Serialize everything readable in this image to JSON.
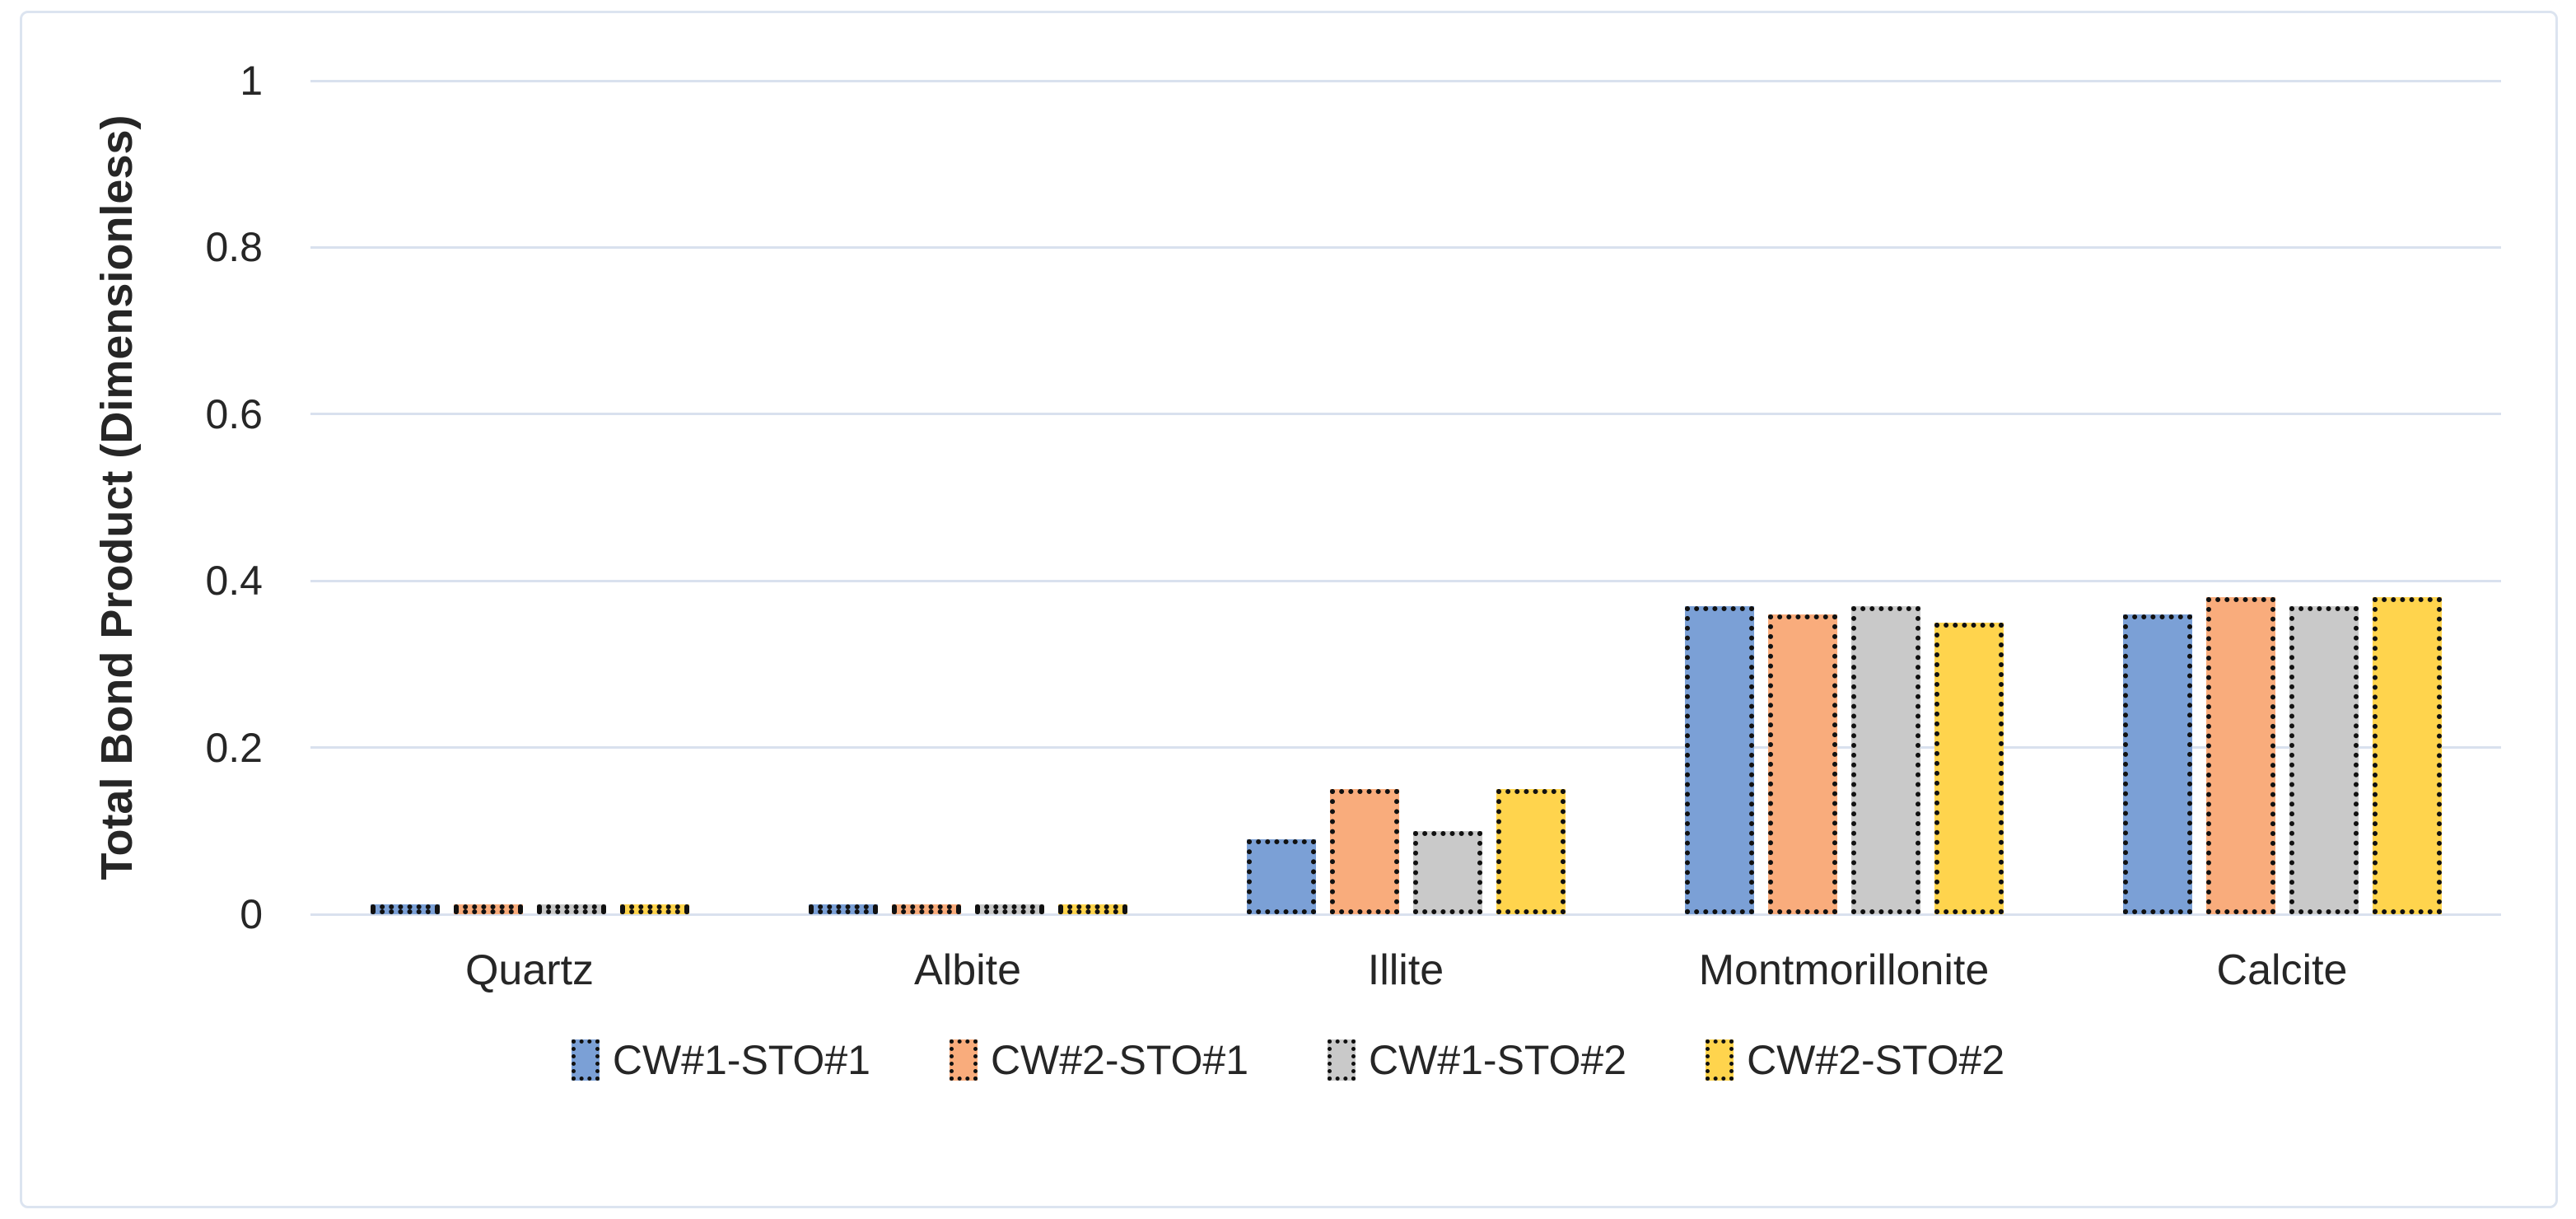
{
  "figure": {
    "background": "#ffffff",
    "border_color": "#dce4f0"
  },
  "chart_data": {
    "type": "bar",
    "title": "",
    "xlabel": "",
    "ylabel": "Total Bond Product (Dimensionless)",
    "categories": [
      "Quartz",
      "Albite",
      "Illite",
      "Montmorillonite",
      "Calcite"
    ],
    "series": [
      {
        "name": "CW#1-STO#1",
        "color": "#7BA0D6",
        "values": [
          0.01,
          0.01,
          0.09,
          0.37,
          0.36
        ]
      },
      {
        "name": "CW#2-STO#1",
        "color": "#F9AC7C",
        "values": [
          0.01,
          0.01,
          0.15,
          0.36,
          0.38
        ]
      },
      {
        "name": "CW#1-STO#2",
        "color": "#C9C9C9",
        "values": [
          0.01,
          0.01,
          0.1,
          0.37,
          0.37
        ]
      },
      {
        "name": "CW#2-STO#2",
        "color": "#FFD44D",
        "values": [
          0.01,
          0.01,
          0.15,
          0.35,
          0.38
        ]
      }
    ],
    "ylim": [
      0,
      1
    ],
    "yticks": [
      0,
      0.2,
      0.4,
      0.6,
      0.8,
      1
    ],
    "ytick_labels": [
      "0",
      "0.2",
      "0.4",
      "0.6",
      "0.8",
      "1"
    ],
    "grid": true,
    "gridline_color": "#d9e1ee",
    "bar_border_style": "dotted-black",
    "legend_position": "bottom-center"
  }
}
